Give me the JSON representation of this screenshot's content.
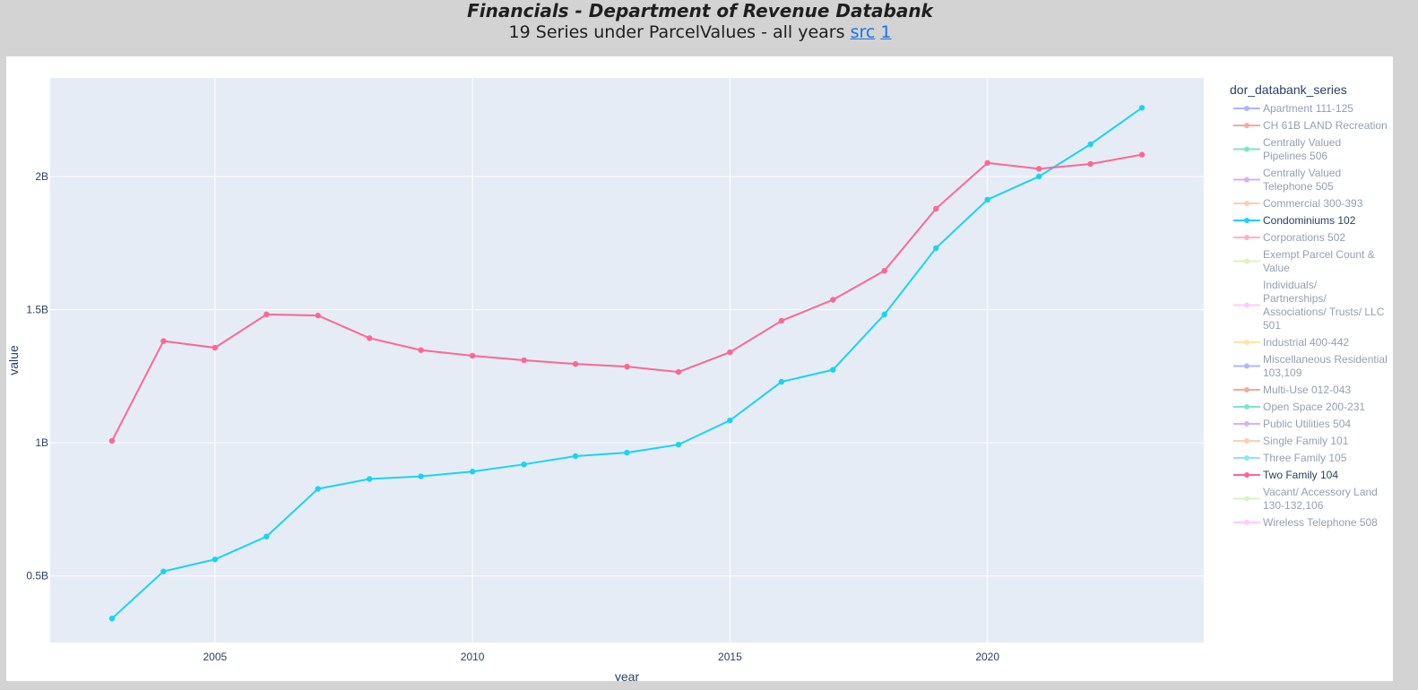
{
  "header": {
    "title": "Financials - Department of Revenue Databank",
    "subtitle": "19 Series under ParcelValues - all years",
    "links": [
      {
        "label": "src"
      },
      {
        "label": "1"
      }
    ]
  },
  "chart_data": {
    "type": "line",
    "xlabel": "year",
    "ylabel": "value",
    "x_ticks": [
      2005,
      2010,
      2015,
      2020
    ],
    "y_ticks": [
      {
        "value": 500000000,
        "label": "0.5B"
      },
      {
        "value": 1000000000,
        "label": "1B"
      },
      {
        "value": 1500000000,
        "label": "1.5B"
      },
      {
        "value": 2000000000,
        "label": "2B"
      }
    ],
    "xlim": [
      2001.8,
      2024.2
    ],
    "ylim": [
      250000000,
      2370000000
    ],
    "grid": true,
    "legend": {
      "title": "dor_databank_series",
      "placement": "right",
      "items": [
        {
          "label": [
            "Apartment 111-125"
          ],
          "color": "#636efa",
          "visible": false
        },
        {
          "label": [
            "CH 61B LAND Recreation"
          ],
          "color": "#ef553b",
          "visible": false
        },
        {
          "label": [
            "Centrally Valued",
            "Pipelines 506"
          ],
          "color": "#00cc96",
          "visible": false
        },
        {
          "label": [
            "Centrally Valued",
            "Telephone 505"
          ],
          "color": "#ab63fa",
          "visible": false
        },
        {
          "label": [
            "Commercial 300-393"
          ],
          "color": "#ffa15a",
          "visible": false
        },
        {
          "label": [
            "Condominiums 102"
          ],
          "color": "#19d3f3",
          "visible": true
        },
        {
          "label": [
            "Corporations 502"
          ],
          "color": "#ff6692",
          "visible": false
        },
        {
          "label": [
            "Exempt Parcel Count &",
            "Value"
          ],
          "color": "#b6e880",
          "visible": false
        },
        {
          "label": [
            "Individuals/",
            "Partnerships/",
            "Associations/ Trusts/ LLC",
            "501"
          ],
          "color": "#ff97ff",
          "visible": false
        },
        {
          "label": [
            "Industrial 400-442"
          ],
          "color": "#fecb52",
          "visible": false
        },
        {
          "label": [
            "Miscellaneous Residential",
            "103,109"
          ],
          "color": "#636efa",
          "visible": false
        },
        {
          "label": [
            "Multi-Use 012-043"
          ],
          "color": "#ef553b",
          "visible": false
        },
        {
          "label": [
            "Open Space 200-231"
          ],
          "color": "#00cc96",
          "visible": false
        },
        {
          "label": [
            "Public Utilities 504"
          ],
          "color": "#ab63fa",
          "visible": false
        },
        {
          "label": [
            "Single Family 101"
          ],
          "color": "#ffa15a",
          "visible": false
        },
        {
          "label": [
            "Three Family 105"
          ],
          "color": "#19d3f3",
          "visible": false
        },
        {
          "label": [
            "Two Family 104"
          ],
          "color": "#ff6692",
          "visible": true
        },
        {
          "label": [
            "Vacant/ Accessory Land",
            "130-132,106"
          ],
          "color": "#b6e880",
          "visible": false
        },
        {
          "label": [
            "Wireless Telephone 508"
          ],
          "color": "#ff97ff",
          "visible": false
        }
      ]
    },
    "x": [
      2003,
      2004,
      2005,
      2006,
      2007,
      2008,
      2009,
      2010,
      2011,
      2012,
      2013,
      2014,
      2015,
      2016,
      2017,
      2018,
      2019,
      2020,
      2021,
      2022,
      2023
    ],
    "series": [
      {
        "name": "Condominiums 102",
        "color": "#19d3f3",
        "values": [
          340000000,
          517000000,
          562000000,
          648000000,
          827000000,
          864000000,
          874000000,
          892000000,
          919000000,
          950000000,
          963000000,
          993000000,
          1084000000,
          1229000000,
          1274000000,
          1482000000,
          1731000000,
          1913000000,
          2000000000,
          2121000000,
          2258000000
        ]
      },
      {
        "name": "Two Family 104",
        "color": "#ff6692",
        "values": [
          1007000000,
          1382000000,
          1357000000,
          1482000000,
          1478000000,
          1393000000,
          1348000000,
          1327000000,
          1310000000,
          1296000000,
          1286000000,
          1266000000,
          1340000000,
          1458000000,
          1537000000,
          1646000000,
          1879000000,
          2051000000,
          2029000000,
          2047000000,
          2082000000
        ]
      }
    ]
  }
}
